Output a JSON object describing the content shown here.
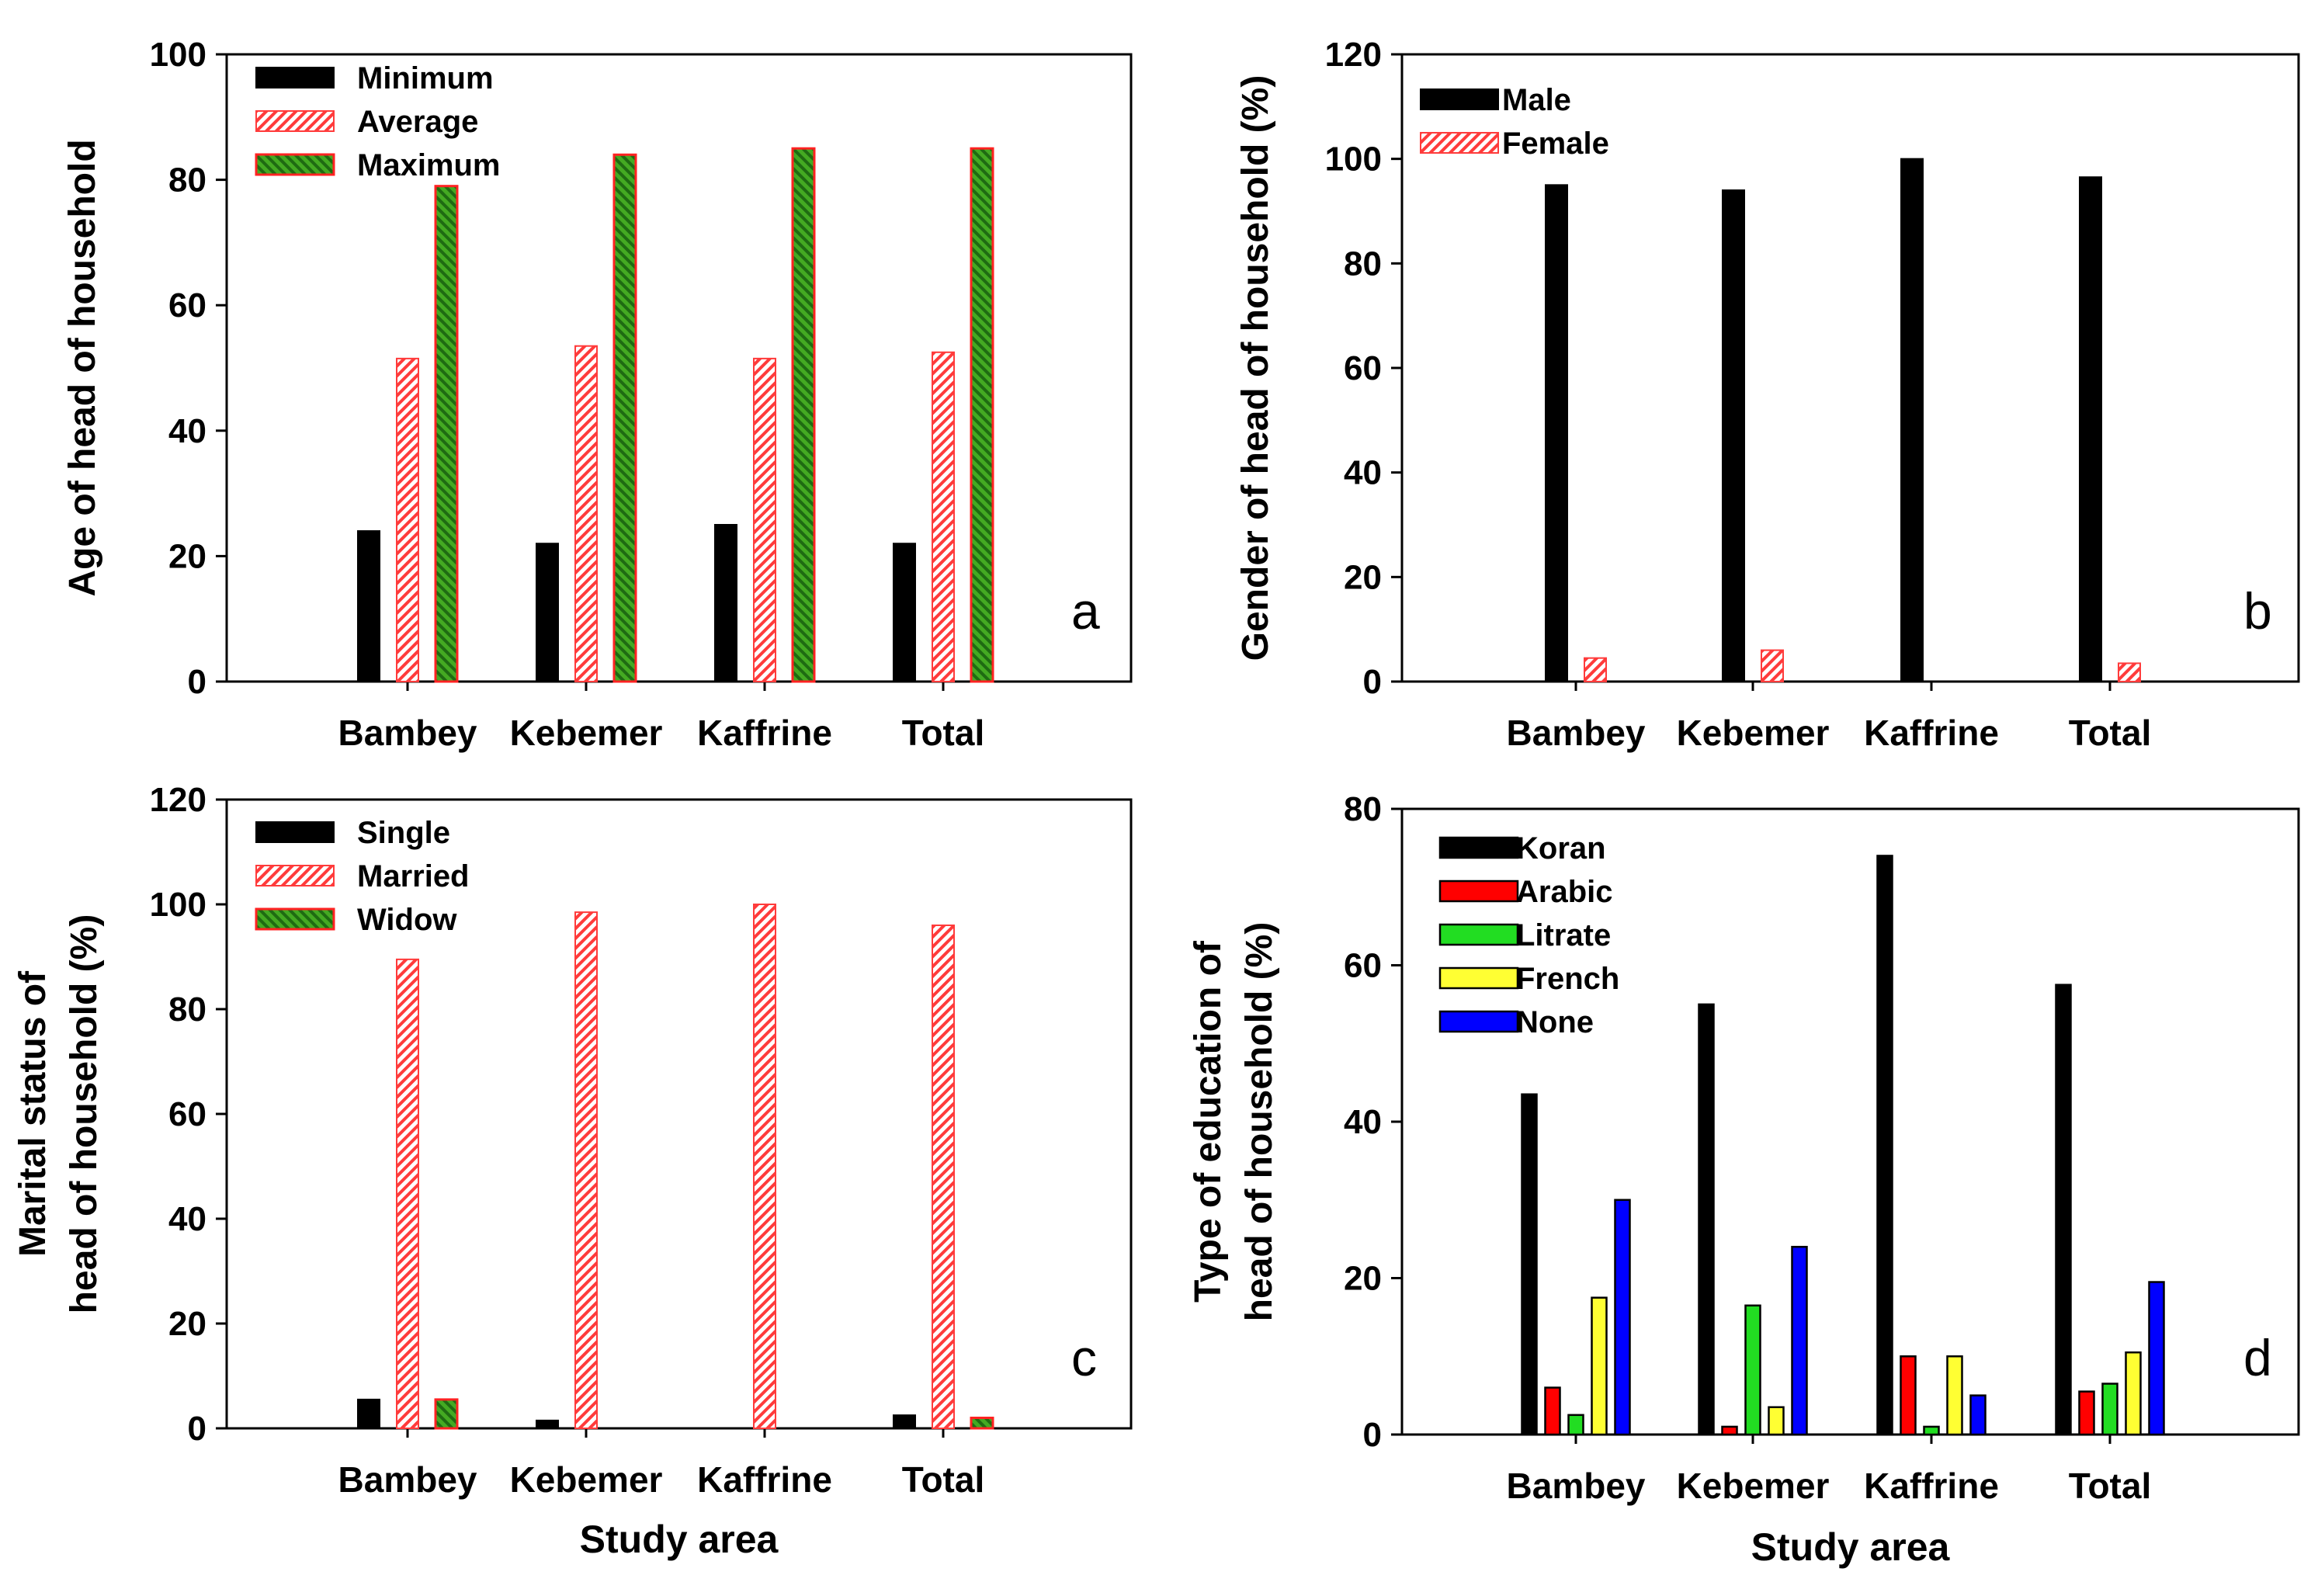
{
  "chart_data": [
    {
      "panel": "a",
      "type": "bar",
      "ylabel": "Age of head of household",
      "xlabel": "",
      "categories": [
        "Bambey",
        "Kebemer",
        "Kaffrine",
        "Total"
      ],
      "ylim": [
        0,
        100
      ],
      "yticks": [
        0,
        20,
        40,
        60,
        80,
        100
      ],
      "legend_position": "top-left",
      "series": [
        {
          "name": "Minimum",
          "style": "solid-black",
          "values": [
            24,
            22,
            25,
            22
          ]
        },
        {
          "name": "Average",
          "style": "hatch-red",
          "values": [
            51.5,
            53.5,
            51.5,
            52.5
          ]
        },
        {
          "name": "Maximum",
          "style": "hatch-green",
          "values": [
            79,
            84,
            85,
            85
          ]
        }
      ]
    },
    {
      "panel": "b",
      "type": "bar",
      "ylabel": "Gender of head of household (%)",
      "xlabel": "",
      "categories": [
        "Bambey",
        "Kebemer",
        "Kaffrine",
        "Total"
      ],
      "ylim": [
        0,
        120
      ],
      "yticks": [
        0,
        20,
        40,
        60,
        80,
        100,
        120
      ],
      "legend_position": "top-left",
      "series": [
        {
          "name": "Male",
          "style": "solid-black",
          "values": [
            95,
            94,
            100,
            96.5
          ]
        },
        {
          "name": "Female",
          "style": "hatch-red",
          "values": [
            4.5,
            6,
            0,
            3.5
          ]
        }
      ]
    },
    {
      "panel": "c",
      "type": "bar",
      "ylabel_lines": [
        "Marital status of",
        "head of household (%)"
      ],
      "xlabel": "Study area",
      "categories": [
        "Bambey",
        "Kebemer",
        "Kaffrine",
        "Total"
      ],
      "ylim": [
        0,
        120
      ],
      "yticks": [
        0,
        20,
        40,
        60,
        80,
        100,
        120
      ],
      "legend_position": "top-left",
      "series": [
        {
          "name": "Single",
          "style": "solid-black",
          "values": [
            5.5,
            1.5,
            0,
            2.5
          ]
        },
        {
          "name": "Married",
          "style": "hatch-red",
          "values": [
            89.5,
            98.5,
            100,
            96
          ]
        },
        {
          "name": "Widow",
          "style": "hatch-green",
          "values": [
            5.5,
            0,
            0,
            2
          ]
        }
      ]
    },
    {
      "panel": "d",
      "type": "bar",
      "ylabel_lines": [
        "Type of education of",
        "head of household (%)"
      ],
      "xlabel": "Study area",
      "categories": [
        "Bambey",
        "Kebemer",
        "Kaffrine",
        "Total"
      ],
      "ylim": [
        0,
        80
      ],
      "yticks": [
        0,
        20,
        40,
        60,
        80
      ],
      "legend_position": "top-left",
      "series": [
        {
          "name": "Koran",
          "style": "solid",
          "color": "#000000",
          "values": [
            43.5,
            55,
            74,
            57.5
          ]
        },
        {
          "name": "Arabic",
          "style": "solid",
          "color": "#ff0000",
          "values": [
            6,
            1,
            10,
            5.5
          ]
        },
        {
          "name": "Litrate",
          "style": "solid",
          "color": "#22dd22",
          "values": [
            2.5,
            16.5,
            1,
            6.5
          ]
        },
        {
          "name": "French",
          "style": "solid",
          "color": "#ffff33",
          "values": [
            17.5,
            3.5,
            10,
            10.5
          ]
        },
        {
          "name": "None",
          "style": "solid",
          "color": "#0000ff",
          "values": [
            30,
            24,
            5,
            19.5
          ]
        }
      ]
    }
  ]
}
